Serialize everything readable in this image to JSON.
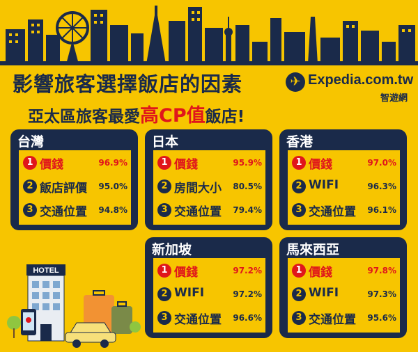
{
  "header": {
    "title": "影響旅客選擇飯店的因素",
    "subtitle_prefix": "亞太區旅客最愛",
    "subtitle_highlight": "高CP值",
    "subtitle_suffix": "飯店!"
  },
  "logo": {
    "brand": "Expedia.com.tw",
    "brand_sub": "智遊網",
    "icon": "plane-icon"
  },
  "illustration": {
    "hotel_sign": "HOTEL"
  },
  "regions": [
    {
      "name": "台灣",
      "items": [
        {
          "rank": "1",
          "label": "價錢",
          "value": "96.9%"
        },
        {
          "rank": "2",
          "label": "飯店評價",
          "value": "95.0%"
        },
        {
          "rank": "3",
          "label": "交通位置",
          "value": "94.8%"
        }
      ]
    },
    {
      "name": "日本",
      "items": [
        {
          "rank": "1",
          "label": "價錢",
          "value": "95.9%"
        },
        {
          "rank": "2",
          "label": "房間大小",
          "value": "80.5%"
        },
        {
          "rank": "3",
          "label": "交通位置",
          "value": "79.4%"
        }
      ]
    },
    {
      "name": "香港",
      "items": [
        {
          "rank": "1",
          "label": "價錢",
          "value": "97.0%"
        },
        {
          "rank": "2",
          "label": "WIFI",
          "value": "96.3%"
        },
        {
          "rank": "3",
          "label": "交通位置",
          "value": "96.1%"
        }
      ]
    },
    {
      "name": "新加坡",
      "items": [
        {
          "rank": "1",
          "label": "價錢",
          "value": "97.2%"
        },
        {
          "rank": "2",
          "label": "WIFI",
          "value": "97.2%"
        },
        {
          "rank": "3",
          "label": "交通位置",
          "value": "96.6%"
        }
      ]
    },
    {
      "name": "馬來西亞",
      "items": [
        {
          "rank": "1",
          "label": "價錢",
          "value": "97.8%"
        },
        {
          "rank": "2",
          "label": "WIFI",
          "value": "97.3%"
        },
        {
          "rank": "3",
          "label": "交通位置",
          "value": "95.6%"
        }
      ]
    }
  ],
  "colors": {
    "background": "#f7c500",
    "navy": "#1a2a4a",
    "highlight_red": "#e0161b"
  }
}
